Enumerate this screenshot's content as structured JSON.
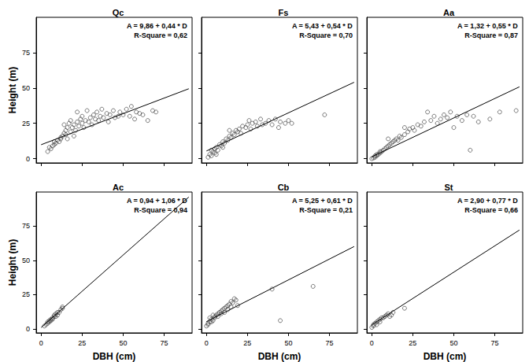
{
  "chart_data": [
    {
      "type": "scatter",
      "title": "Qc",
      "annotations": [
        "A = 9,86 + 0,44 * D",
        "R-Square = 0,62"
      ],
      "ylabel": "Height (m)",
      "xlim": [
        -3,
        92
      ],
      "ylim": [
        -3,
        100
      ],
      "xticks": [
        0,
        25,
        50,
        75
      ],
      "yticks": [
        0,
        25,
        50,
        75
      ],
      "grid": false,
      "tick_labels": "y",
      "series": [
        {
          "type": "scatter",
          "marker": "circle_open",
          "color": "#333333",
          "x": [
            4,
            5,
            6,
            7,
            8,
            8,
            9,
            10,
            11,
            12,
            12,
            13,
            14,
            15,
            15,
            16,
            17,
            18,
            18,
            19,
            20,
            21,
            22,
            23,
            24,
            25,
            25,
            26,
            27,
            28,
            29,
            30,
            31,
            32,
            33,
            34,
            35,
            36,
            37,
            38,
            40,
            41,
            42,
            44,
            45,
            47,
            48,
            50,
            52,
            54,
            55,
            57,
            58,
            60,
            62,
            65,
            68,
            70,
            16,
            20,
            14,
            22
          ],
          "values": [
            5,
            8,
            7,
            9,
            10,
            12,
            11,
            13,
            12,
            15,
            14,
            16,
            18,
            17,
            20,
            22,
            25,
            27,
            19,
            22,
            24,
            20,
            26,
            23,
            28,
            25,
            30,
            22,
            27,
            34,
            26,
            29,
            24,
            31,
            28,
            33,
            27,
            30,
            35,
            29,
            32,
            26,
            31,
            34,
            29,
            30,
            33,
            31,
            35,
            30,
            37,
            28,
            33,
            32,
            31,
            27,
            34,
            33,
            14,
            16,
            24,
            33
          ]
        },
        {
          "type": "line",
          "line_style": "solid",
          "color": "#000000",
          "x": [
            0,
            90
          ],
          "values": [
            9.86,
            49.46
          ]
        }
      ]
    },
    {
      "type": "scatter",
      "title": "Fs",
      "annotations": [
        "A = 5,43 + 0,54 * D",
        "R-Square = 0,70"
      ],
      "xlim": [
        -3,
        92
      ],
      "ylim": [
        -3,
        100
      ],
      "xticks": [
        0,
        25,
        50,
        75
      ],
      "yticks": [
        0,
        25,
        50,
        75
      ],
      "grid": false,
      "tick_labels": false,
      "series": [
        {
          "type": "scatter",
          "marker": "circle_open",
          "color": "#333333",
          "x": [
            1,
            2,
            3,
            4,
            5,
            5,
            6,
            7,
            8,
            9,
            10,
            11,
            12,
            13,
            14,
            15,
            16,
            17,
            18,
            19,
            20,
            21,
            22,
            24,
            25,
            26,
            27,
            28,
            30,
            31,
            33,
            34,
            36,
            38,
            40,
            42,
            44,
            45,
            48,
            50,
            52,
            72,
            3,
            6,
            10,
            14
          ],
          "values": [
            1,
            3,
            2,
            5,
            4,
            7,
            8,
            6,
            10,
            9,
            12,
            11,
            14,
            13,
            16,
            15,
            18,
            17,
            20,
            19,
            21,
            18,
            23,
            22,
            24,
            27,
            21,
            25,
            26,
            23,
            28,
            24,
            25,
            27,
            24,
            28,
            22,
            26,
            25,
            27,
            25,
            31,
            6,
            3,
            8,
            20
          ]
        },
        {
          "type": "line",
          "line_style": "solid",
          "color": "#000000",
          "x": [
            0,
            90
          ],
          "values": [
            5.43,
            54.03
          ]
        }
      ]
    },
    {
      "type": "scatter",
      "title": "Aa",
      "annotations": [
        "A = 1,32 + 0,55 * D",
        "R-Square = 0,87"
      ],
      "xlim": [
        -3,
        92
      ],
      "ylim": [
        -3,
        100
      ],
      "xticks": [
        0,
        25,
        50,
        75
      ],
      "yticks": [
        0,
        25,
        50,
        75
      ],
      "grid": false,
      "tick_labels": false,
      "series": [
        {
          "type": "scatter",
          "marker": "circle_open",
          "color": "#333333",
          "x": [
            0,
            1,
            2,
            2,
            3,
            3,
            4,
            5,
            5,
            6,
            7,
            8,
            9,
            10,
            11,
            12,
            13,
            14,
            15,
            16,
            17,
            18,
            20,
            22,
            23,
            25,
            26,
            28,
            30,
            32,
            34,
            36,
            38,
            40,
            42,
            44,
            46,
            48,
            50,
            52,
            55,
            58,
            60,
            62,
            65,
            72,
            78,
            88,
            10,
            20
          ],
          "values": [
            0,
            0.5,
            1,
            2,
            2,
            3,
            3,
            4,
            5,
            5,
            6,
            7,
            8,
            9,
            10,
            11,
            12,
            13,
            14,
            13,
            16,
            15,
            17,
            19,
            21,
            22,
            20,
            24,
            23,
            26,
            33,
            27,
            30,
            25,
            28,
            31,
            29,
            33,
            22,
            30,
            27,
            31,
            6,
            30,
            26,
            28,
            33,
            34,
            14,
            22
          ]
        },
        {
          "type": "line",
          "line_style": "solid",
          "color": "#000000",
          "x": [
            0,
            90
          ],
          "values": [
            1.32,
            50.82
          ]
        }
      ]
    },
    {
      "type": "scatter",
      "title": "Ac",
      "annotations": [
        "A = 0,94 + 1,06 * D",
        "R-Square = 0,94"
      ],
      "xlabel": "DBH (cm)",
      "ylabel": "Height (m)",
      "xlim": [
        -3,
        92
      ],
      "ylim": [
        -3,
        100
      ],
      "xticks": [
        0,
        25,
        50,
        75
      ],
      "yticks": [
        0,
        25,
        50,
        75
      ],
      "grid": false,
      "tick_labels": true,
      "series": [
        {
          "type": "scatter",
          "marker": "circle_open",
          "color": "#333333",
          "x": [
            2,
            3,
            4,
            4,
            5,
            5,
            6,
            6,
            7,
            7,
            8,
            8,
            9,
            9,
            10,
            10,
            11,
            12,
            13,
            13
          ],
          "values": [
            2,
            3,
            4,
            5,
            5,
            6,
            6,
            7,
            7,
            8,
            9,
            10,
            9,
            11,
            10,
            12,
            12,
            14,
            15,
            16
          ]
        },
        {
          "type": "line",
          "line_style": "solid",
          "color": "#000000",
          "x": [
            0,
            90
          ],
          "values": [
            0.94,
            96.34
          ]
        }
      ]
    },
    {
      "type": "scatter",
      "title": "Cb",
      "annotations": [
        "A = 5,25 + 0,61 * D",
        "R-Square = 0,21"
      ],
      "xlabel": "DBH (cm)",
      "xlim": [
        -3,
        92
      ],
      "ylim": [
        -3,
        100
      ],
      "xticks": [
        0,
        25,
        50,
        75
      ],
      "yticks": [
        0,
        25,
        50,
        75
      ],
      "grid": false,
      "tick_labels": "x",
      "series": [
        {
          "type": "scatter",
          "marker": "circle_open",
          "color": "#333333",
          "x": [
            0,
            1,
            1,
            2,
            3,
            3,
            4,
            5,
            5,
            6,
            7,
            7,
            8,
            9,
            9,
            10,
            11,
            11,
            12,
            13,
            13,
            14,
            15,
            15,
            16,
            17,
            18,
            19,
            40,
            45,
            65,
            2,
            4
          ],
          "values": [
            2,
            3,
            4,
            5,
            5,
            7,
            6,
            8,
            9,
            10,
            9,
            11,
            12,
            11,
            13,
            14,
            12,
            15,
            16,
            14,
            17,
            18,
            16,
            20,
            19,
            22,
            21,
            17,
            29,
            6,
            31,
            8,
            10
          ]
        },
        {
          "type": "line",
          "line_style": "solid",
          "color": "#000000",
          "x": [
            0,
            90
          ],
          "values": [
            5.25,
            60.15
          ]
        }
      ]
    },
    {
      "type": "scatter",
      "title": "St",
      "annotations": [
        "A = 2,90 + 0,77 * D",
        "R-Square = 0,66"
      ],
      "xlabel": "DBH (cm)",
      "xlim": [
        -3,
        92
      ],
      "ylim": [
        -3,
        100
      ],
      "xticks": [
        0,
        25,
        50,
        75
      ],
      "yticks": [
        0,
        25,
        50,
        75
      ],
      "grid": false,
      "tick_labels": "x",
      "series": [
        {
          "type": "scatter",
          "marker": "circle_open",
          "color": "#333333",
          "x": [
            0,
            1,
            1,
            2,
            3,
            4,
            5,
            6,
            7,
            8,
            9,
            10,
            11,
            12,
            13,
            20,
            3,
            5
          ],
          "values": [
            1,
            2,
            3,
            4,
            5,
            6,
            7,
            8,
            8,
            9,
            10,
            11,
            9,
            10,
            12,
            15,
            3,
            5
          ]
        },
        {
          "type": "line",
          "line_style": "solid",
          "color": "#000000",
          "x": [
            0,
            90
          ],
          "values": [
            2.9,
            72.2
          ]
        }
      ]
    }
  ]
}
